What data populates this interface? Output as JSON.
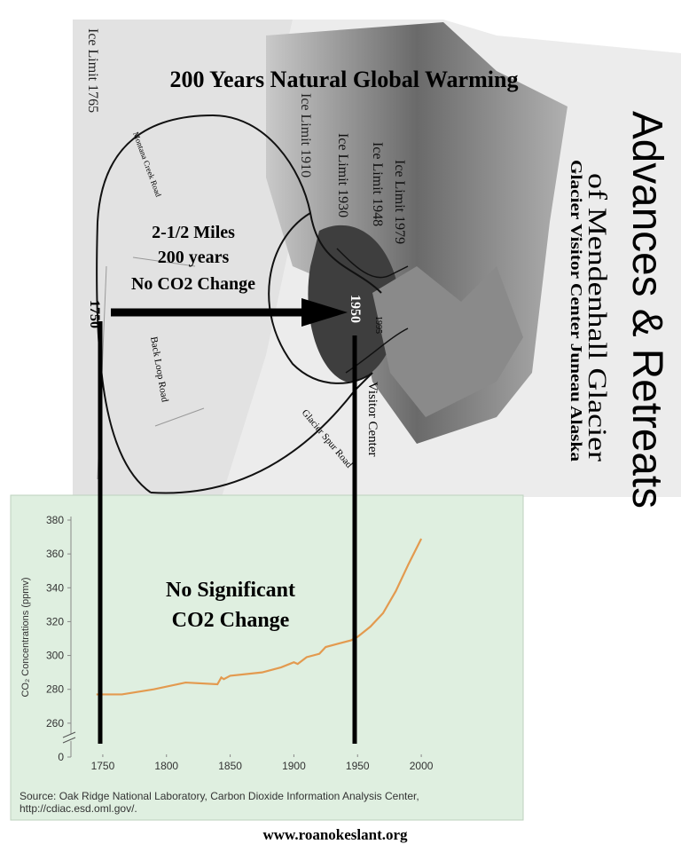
{
  "map": {
    "title": "200 Years Natural Global Warming",
    "ice_limits": [
      "Ice Limit 1765",
      "Ice Limit 1910",
      "Ice Limit 1930",
      "Ice Limit 1948",
      "Ice Limit 1979"
    ],
    "distance_note": [
      "2-1/2 Miles",
      "200 years",
      "No CO2 Change"
    ],
    "start_year": "1750",
    "end_year": "1950",
    "small_year": "1995",
    "visitor_center": "Visitor Center",
    "roads": [
      "Back Loop Road",
      "Glacier Spur Road",
      "Montana Creek Road"
    ],
    "heading": "Advances & Retreats",
    "subheading": "of Mendenhall Glacier",
    "location": "Glacier Visitor Center  Juneau Alaska"
  },
  "chart_data": {
    "type": "line",
    "annotation": [
      "No Significant",
      "CO2 Change"
    ],
    "y_label": "CO₂ Concentrations (ppmv)",
    "x": [
      1745,
      1765,
      1790,
      1815,
      1840,
      1843,
      1845,
      1850,
      1875,
      1890,
      1900,
      1903,
      1910,
      1920,
      1925,
      1935,
      1945,
      1950,
      1960,
      1970,
      1980,
      1990,
      2000
    ],
    "values": [
      277,
      277,
      280,
      284,
      283,
      287,
      286,
      288,
      290,
      293,
      296,
      295,
      299,
      301,
      305,
      307,
      309,
      311,
      317,
      325,
      338,
      354,
      369
    ],
    "color": "#e39a4f",
    "xlim": [
      1725,
      2025
    ],
    "xticks": [
      1750,
      1800,
      1850,
      1900,
      1950,
      2000
    ],
    "ylim": [
      0,
      380
    ],
    "yticks": [
      0,
      260,
      280,
      300,
      320,
      340,
      360,
      380
    ],
    "y_break": true,
    "source": [
      "Source: Oak Ridge National Laboratory, Carbon Dioxide Information Analysis Center,",
      "http://cdiac.esd.oml.gov/."
    ]
  },
  "footer": "www.roanokeslant.org"
}
